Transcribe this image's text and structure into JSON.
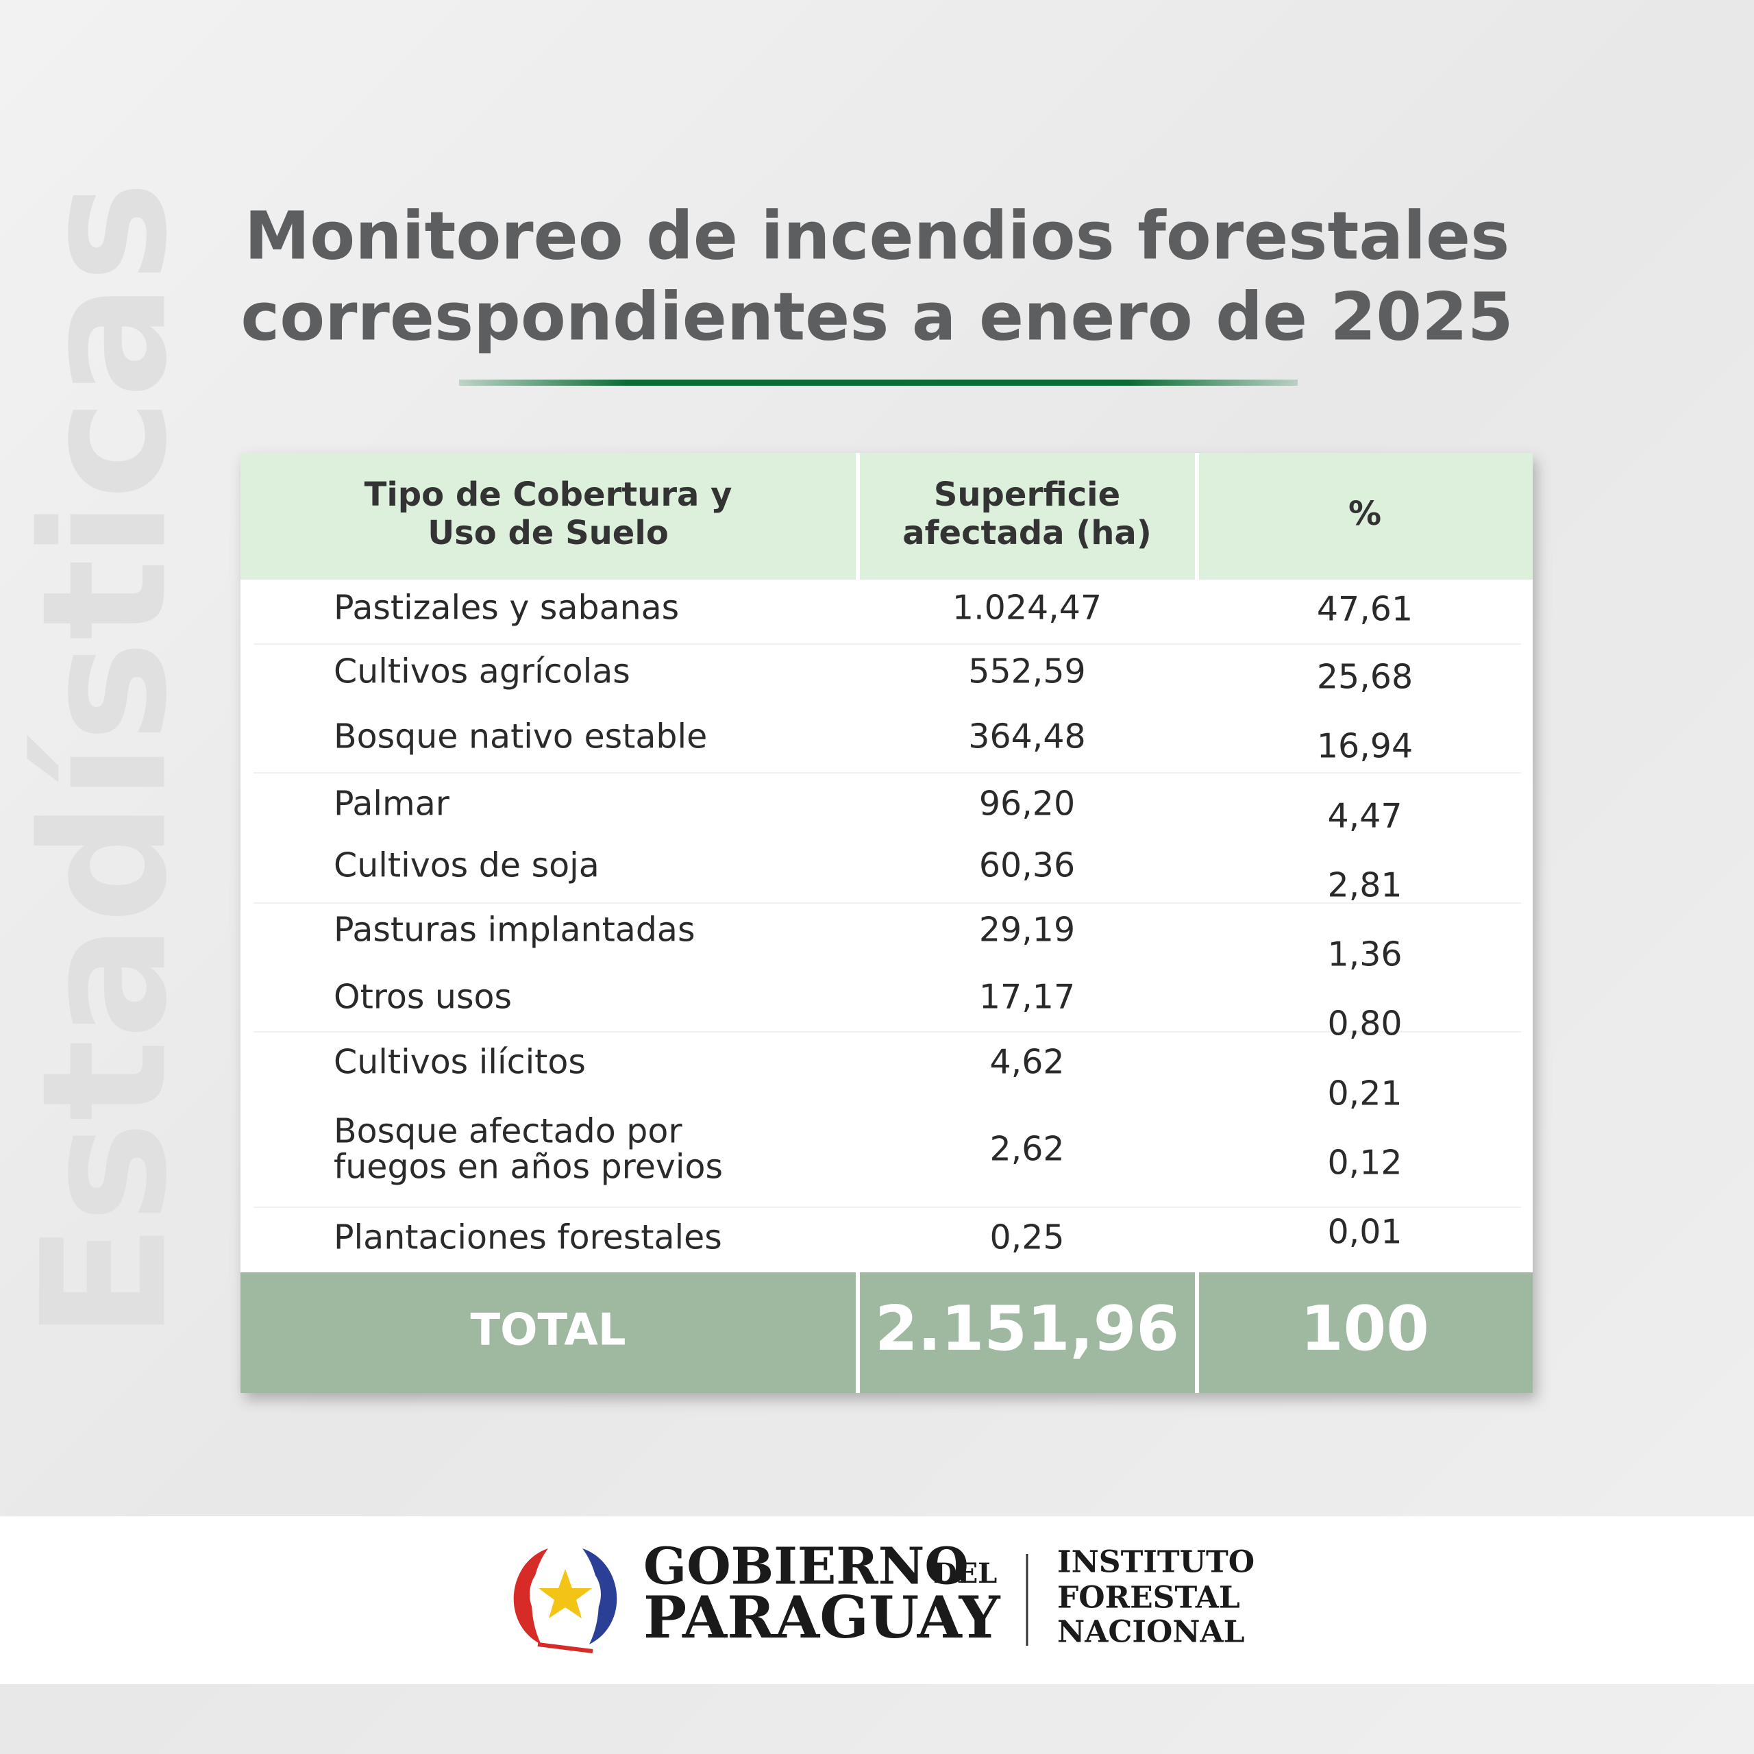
{
  "side_label": "Estadísticas",
  "title": [
    "Monitoreo de incendios forestales",
    "correspondientes a enero de 2025"
  ],
  "table": {
    "header": [
      [
        "Tipo de Cobertura y",
        "Uso de Suelo"
      ],
      [
        "Superficie",
        "afectada (ha)"
      ],
      [
        "%"
      ]
    ],
    "rows": [
      [
        [
          "Pastizales y sabanas"
        ],
        "1.024,47",
        "47,61"
      ],
      [
        [
          "Cultivos agrícolas"
        ],
        "552,59",
        "25,68"
      ],
      [
        [
          "Bosque nativo estable"
        ],
        "364,48",
        "16,94"
      ],
      [
        [
          "Palmar"
        ],
        "96,20",
        "4,47"
      ],
      [
        [
          "Cultivos de soja"
        ],
        "60,36",
        "2,81"
      ],
      [
        [
          "Pasturas implantadas"
        ],
        "29,19",
        "1,36"
      ],
      [
        [
          "Otros usos"
        ],
        "17,17",
        "0,80"
      ],
      [
        [
          "Cultivos ilícitos"
        ],
        "4,62",
        "0,21"
      ],
      [
        [
          "Bosque afectado por",
          "fuegos en años previos"
        ],
        "2,62",
        "0,12"
      ],
      [
        [
          "Plantaciones forestales"
        ],
        "0,25",
        "0,01"
      ]
    ],
    "total": [
      "TOTAL",
      "2.151,96",
      "100"
    ]
  },
  "footer": {
    "government": [
      "GOBIERNO",
      "DEL",
      "PARAGUAY"
    ],
    "institute": [
      "INSTITUTO",
      "FORESTAL",
      "NACIONAL"
    ]
  }
}
